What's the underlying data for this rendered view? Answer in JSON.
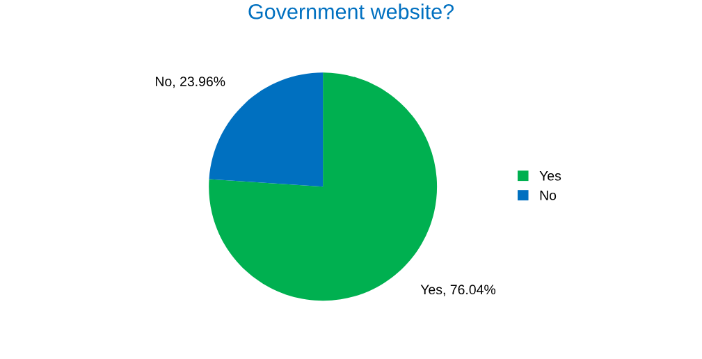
{
  "chart_data": {
    "type": "pie",
    "title": "Government website?",
    "categories": [
      "Yes",
      "No"
    ],
    "values": [
      76.04,
      23.96
    ],
    "colors": [
      "#00b050",
      "#0070c0"
    ],
    "value_labels": [
      "Yes, 76.04%",
      "No, 23.96%"
    ],
    "legend": "right"
  }
}
